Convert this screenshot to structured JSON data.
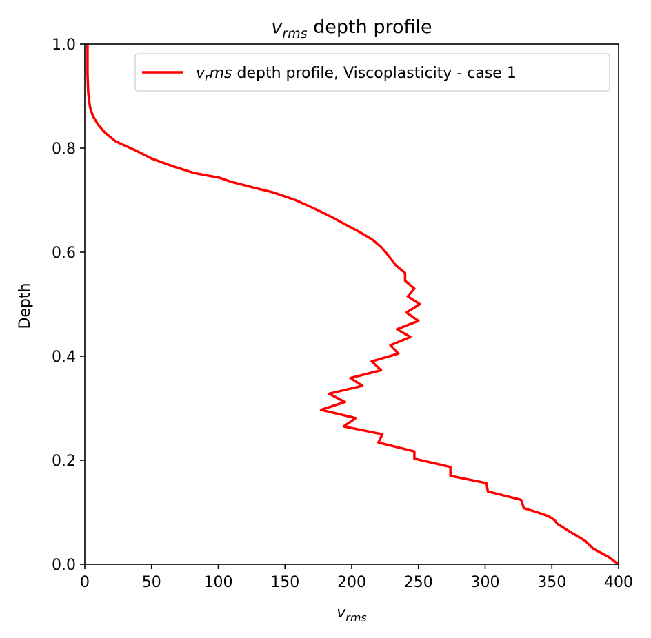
{
  "chart_data": {
    "type": "line",
    "title_symbol": "v",
    "title_subscript": "rms",
    "title_rest": " depth profile",
    "xlabel_symbol": "v",
    "xlabel_subscript": "rms",
    "ylabel": "Depth",
    "xlim": [
      0,
      400
    ],
    "ylim": [
      0.0,
      1.0
    ],
    "xticks": [
      0,
      50,
      100,
      150,
      200,
      250,
      300,
      350,
      400
    ],
    "xtick_labels": [
      "0",
      "50",
      "100",
      "150",
      "200",
      "250",
      "300",
      "350",
      "400"
    ],
    "yticks": [
      0.0,
      0.2,
      0.4,
      0.6,
      0.8,
      1.0
    ],
    "ytick_labels": [
      "0.0",
      "0.2",
      "0.4",
      "0.6",
      "0.8",
      "1.0"
    ],
    "grid": false,
    "legend_position": "top-right",
    "series": [
      {
        "legend_symbol": "v",
        "legend_subscript": "r",
        "legend_italic_tail": "ms",
        "legend_rest": " depth profile, Viscoplasticity - case 1",
        "color": "#ff0000",
        "x": [
          400,
          392,
          381,
          375,
          364,
          354,
          352,
          347,
          339,
          329,
          327,
          302,
          301,
          274,
          274,
          247,
          247,
          220,
          223,
          194,
          203,
          177,
          195,
          183,
          208,
          199,
          222,
          215,
          235,
          229,
          244,
          234,
          250,
          241,
          251,
          242,
          247,
          240,
          240,
          233,
          230,
          227,
          222,
          215,
          205,
          194,
          183,
          171,
          158,
          141,
          128,
          110,
          101,
          82,
          66,
          50,
          37,
          23,
          15,
          10,
          6,
          4,
          3,
          2.5,
          2,
          2
        ],
        "y": [
          0.0,
          0.015,
          0.03,
          0.045,
          0.062,
          0.078,
          0.085,
          0.093,
          0.1,
          0.108,
          0.124,
          0.14,
          0.156,
          0.17,
          0.187,
          0.203,
          0.217,
          0.234,
          0.25,
          0.265,
          0.281,
          0.297,
          0.312,
          0.328,
          0.343,
          0.358,
          0.373,
          0.39,
          0.405,
          0.421,
          0.437,
          0.452,
          0.468,
          0.484,
          0.5,
          0.515,
          0.53,
          0.545,
          0.56,
          0.575,
          0.585,
          0.595,
          0.61,
          0.625,
          0.64,
          0.655,
          0.67,
          0.685,
          0.7,
          0.715,
          0.723,
          0.735,
          0.743,
          0.752,
          0.765,
          0.78,
          0.797,
          0.813,
          0.83,
          0.845,
          0.862,
          0.878,
          0.895,
          0.91,
          0.945,
          1.0
        ]
      }
    ]
  }
}
